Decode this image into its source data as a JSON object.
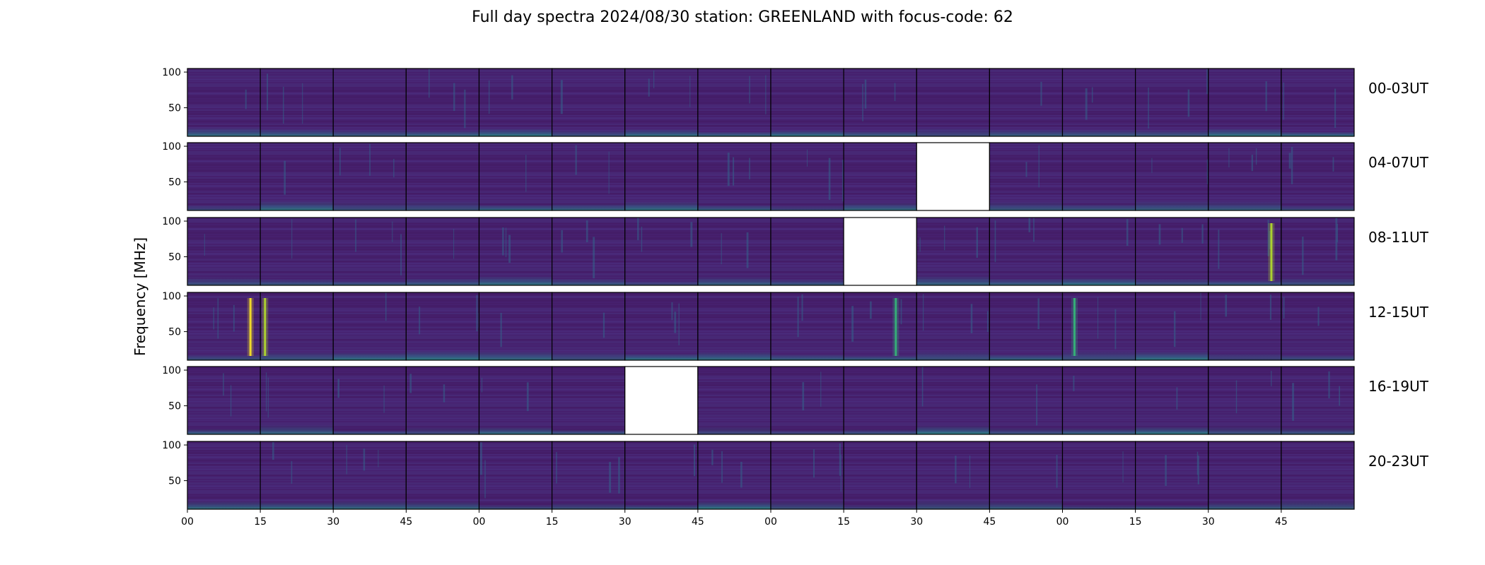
{
  "chart_data": {
    "type": "heatmap",
    "title": "Full day spectra 2024/08/30 station: GREENLAND with focus-code: 62",
    "ylabel": "Frequency [MHz]",
    "colormap": "viridis",
    "y_ticks": [
      100,
      50
    ],
    "x_ticks": [
      "00",
      "15",
      "30",
      "45",
      "00",
      "15",
      "30",
      "45",
      "00",
      "15",
      "30",
      "45",
      "00",
      "15",
      "30",
      "45"
    ],
    "row_labels": [
      "00-03UT",
      "04-07UT",
      "08-11UT",
      "12-15UT",
      "16-19UT",
      "20-23UT"
    ],
    "missing_panels": [
      {
        "row": "04-07UT",
        "panel_index": 10
      },
      {
        "row": "08-11UT",
        "panel_index": 9
      },
      {
        "row": "16-19UT",
        "panel_index": 6
      }
    ],
    "bursts": [
      {
        "row": "12-15UT",
        "panel_index": 0,
        "position": 0.85,
        "strength": 1.0
      },
      {
        "row": "12-15UT",
        "panel_index": 1,
        "position": 0.05,
        "strength": 0.85
      },
      {
        "row": "08-11UT",
        "panel_index": 14,
        "position": 0.85,
        "strength": 0.8
      },
      {
        "row": "12-15UT",
        "panel_index": 12,
        "position": 0.15,
        "strength": 0.6
      },
      {
        "row": "12-15UT",
        "panel_index": 9,
        "position": 0.7,
        "strength": 0.5
      }
    ]
  }
}
